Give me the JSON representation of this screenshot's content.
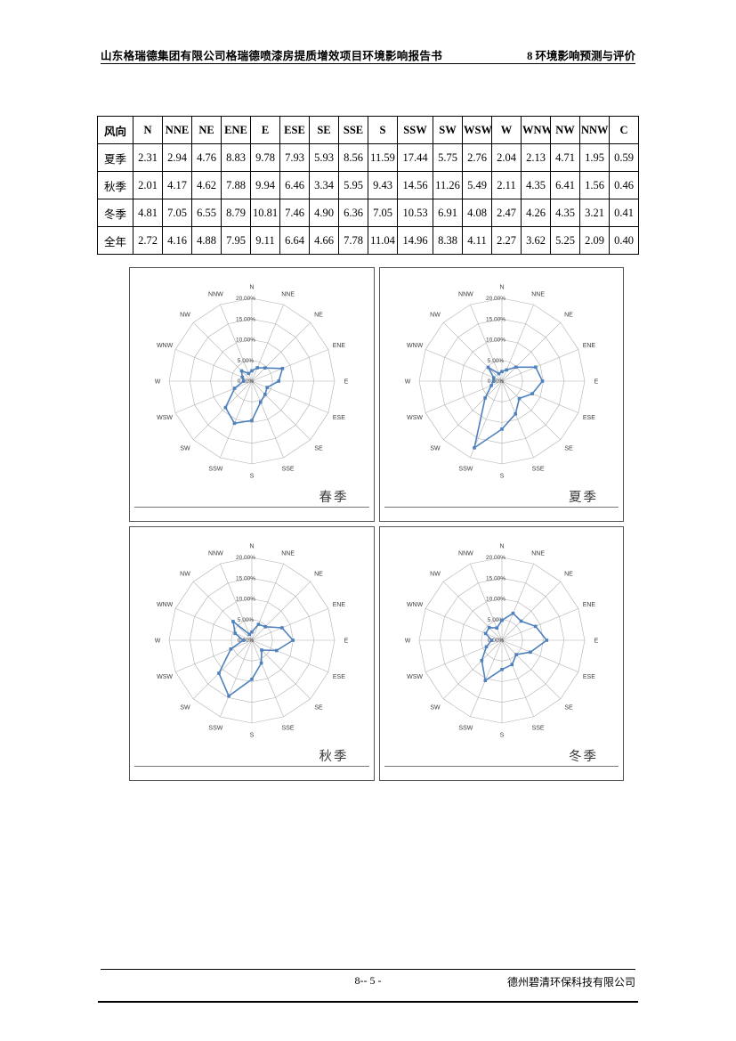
{
  "page": {
    "header_left": "山东格瑞德集团有限公司格瑞德喷漆房提质增效项目环境影响报告书",
    "header_right": "8 环境影响预测与评价",
    "footer_center": "8-- 5 -",
    "footer_right": "德州碧清环保科技有限公司"
  },
  "table": {
    "header": [
      "风向",
      "N",
      "NNE",
      "NE",
      "ENE",
      "E",
      "ESE",
      "SE",
      "SSE",
      "S",
      "SSW",
      "SW",
      "WSW",
      "W",
      "WNW",
      "NW",
      "NNW",
      "C"
    ],
    "rows": [
      {
        "label": "夏季",
        "values": [
          "2.31",
          "2.94",
          "4.76",
          "8.83",
          "9.78",
          "7.93",
          "5.93",
          "8.56",
          "11.59",
          "17.44",
          "5.75",
          "2.76",
          "2.04",
          "2.13",
          "4.71",
          "1.95",
          "0.59"
        ]
      },
      {
        "label": "秋季",
        "values": [
          "2.01",
          "4.17",
          "4.62",
          "7.88",
          "9.94",
          "6.46",
          "3.34",
          "5.95",
          "9.43",
          "14.56",
          "11.26",
          "5.49",
          "2.11",
          "4.35",
          "6.41",
          "1.56",
          "0.46"
        ]
      },
      {
        "label": "冬季",
        "values": [
          "4.81",
          "7.05",
          "6.55",
          "8.79",
          "10.81",
          "7.46",
          "4.90",
          "6.36",
          "7.05",
          "10.53",
          "6.91",
          "4.08",
          "2.47",
          "4.26",
          "4.35",
          "3.21",
          "0.41"
        ]
      },
      {
        "label": "全年",
        "values": [
          "2.72",
          "4.16",
          "4.88",
          "7.95",
          "9.11",
          "6.64",
          "4.66",
          "7.78",
          "11.04",
          "14.96",
          "8.38",
          "4.11",
          "2.27",
          "3.62",
          "5.25",
          "2.09",
          "0.40"
        ]
      }
    ]
  },
  "chart_data": [
    {
      "type": "radar",
      "title": "春季",
      "categories": [
        "N",
        "NNE",
        "NE",
        "ENE",
        "E",
        "ESE",
        "SE",
        "SSE",
        "S",
        "SSW",
        "SW",
        "WSW",
        "W",
        "WNW",
        "NW",
        "NNW"
      ],
      "values": [
        2.5,
        3.5,
        4.5,
        8.0,
        6.5,
        4.0,
        4.5,
        5.5,
        9.5,
        11.0,
        9.0,
        4.5,
        2.0,
        2.5,
        3.5,
        2.0
      ],
      "rings": [
        0,
        5,
        10,
        15,
        20
      ],
      "ring_labels": [
        "0.00%",
        "5.00%",
        "10.00%",
        "15.00%",
        "20.00%"
      ],
      "max": 20,
      "color": "#4f81bd",
      "grid_color": "#b0b0b0"
    },
    {
      "type": "radar",
      "title": "夏季",
      "categories": [
        "N",
        "NNE",
        "NE",
        "ENE",
        "E",
        "ESE",
        "SE",
        "SSE",
        "S",
        "SSW",
        "SW",
        "WSW",
        "W",
        "WNW",
        "NW",
        "NNW"
      ],
      "values": [
        2.31,
        2.94,
        4.76,
        8.83,
        9.78,
        7.93,
        5.93,
        8.56,
        11.59,
        17.44,
        5.75,
        2.76,
        2.04,
        2.13,
        4.71,
        1.95
      ],
      "rings": [
        0,
        5,
        10,
        15,
        20
      ],
      "ring_labels": [
        "0.00%",
        "5.00%",
        "10.00%",
        "15.00%",
        "20.00%"
      ],
      "max": 20,
      "color": "#4f81bd",
      "grid_color": "#b0b0b0"
    },
    {
      "type": "radar",
      "title": "秋季",
      "categories": [
        "N",
        "NNE",
        "NE",
        "ENE",
        "E",
        "ESE",
        "SE",
        "SSE",
        "S",
        "SSW",
        "SW",
        "WSW",
        "W",
        "WNW",
        "NW",
        "NNW"
      ],
      "values": [
        2.01,
        4.17,
        4.62,
        7.88,
        9.94,
        6.46,
        3.34,
        5.95,
        9.43,
        14.56,
        11.26,
        5.49,
        2.11,
        4.35,
        6.41,
        1.56
      ],
      "rings": [
        0,
        5,
        10,
        15,
        20
      ],
      "ring_labels": [
        "0.00%",
        "5.00%",
        "10.00%",
        "15.00%",
        "20.00%"
      ],
      "max": 20,
      "color": "#4f81bd",
      "grid_color": "#b0b0b0"
    },
    {
      "type": "radar",
      "title": "冬季",
      "categories": [
        "N",
        "NNE",
        "NE",
        "ENE",
        "E",
        "ESE",
        "SE",
        "SSE",
        "S",
        "SSW",
        "SW",
        "WSW",
        "W",
        "WNW",
        "NW",
        "NNW"
      ],
      "values": [
        4.81,
        7.05,
        6.55,
        8.79,
        10.81,
        7.46,
        4.9,
        6.36,
        7.05,
        10.53,
        6.91,
        4.08,
        2.47,
        4.26,
        4.35,
        3.21
      ],
      "rings": [
        0,
        5,
        10,
        15,
        20
      ],
      "ring_labels": [
        "0.00%",
        "5.00%",
        "10.00%",
        "15.00%",
        "20.00%"
      ],
      "max": 20,
      "color": "#4f81bd",
      "grid_color": "#b0b0b0"
    }
  ]
}
